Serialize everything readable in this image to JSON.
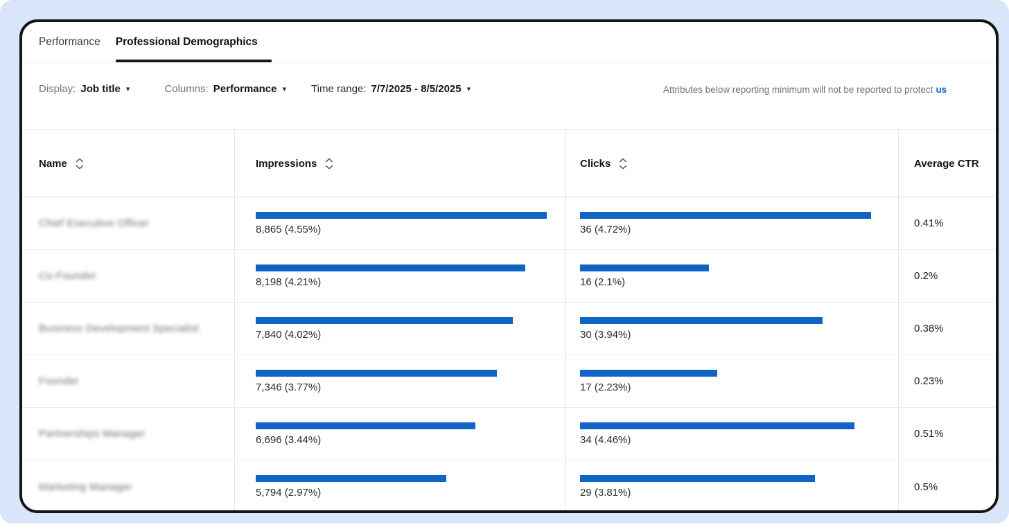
{
  "tabs": [
    {
      "label": "Performance",
      "active": false
    },
    {
      "label": "Professional Demographics",
      "active": true
    }
  ],
  "filters": {
    "display_label": "Display:",
    "display_value": "Job title",
    "columns_label": "Columns:",
    "columns_value": "Performance",
    "time_range_label": "Time range:",
    "time_range_value": "7/7/2025 - 8/5/2025",
    "privacy_notice": "Attributes below reporting minimum will not be reported to protect",
    "privacy_link": "us"
  },
  "table": {
    "headers": {
      "name": "Name",
      "impressions": "Impressions",
      "clicks": "Clicks",
      "average_ctr": "Average CTR"
    },
    "max_impressions": 8865,
    "max_clicks": 36,
    "rows": [
      {
        "name": "Chief Executive Officer",
        "impressions": 8865,
        "impressions_label": "8,865 (4.55%)",
        "clicks": 36,
        "clicks_label": "36 (4.72%)",
        "ctr": "0.41%"
      },
      {
        "name": "Co-Founder",
        "impressions": 8198,
        "impressions_label": "8,198 (4.21%)",
        "clicks": 16,
        "clicks_label": "16 (2.1%)",
        "ctr": "0.2%"
      },
      {
        "name": "Business Development Specialist",
        "impressions": 7840,
        "impressions_label": "7,840 (4.02%)",
        "clicks": 30,
        "clicks_label": "30 (3.94%)",
        "ctr": "0.38%"
      },
      {
        "name": "Founder",
        "impressions": 7346,
        "impressions_label": "7,346 (3.77%)",
        "clicks": 17,
        "clicks_label": "17 (2.23%)",
        "ctr": "0.23%"
      },
      {
        "name": "Partnerships Manager",
        "impressions": 6696,
        "impressions_label": "6,696 (3.44%)",
        "clicks": 34,
        "clicks_label": "34 (4.46%)",
        "ctr": "0.51%"
      },
      {
        "name": "Marketing Manager",
        "impressions": 5794,
        "impressions_label": "5,794 (2.97%)",
        "clicks": 29,
        "clicks_label": "29 (3.81%)",
        "ctr": "0.5%"
      }
    ]
  },
  "colors": {
    "bar_blue": "#0f65c5",
    "link_blue": "#0a66c2",
    "accent_black": "#1a1a1a",
    "page_bg": "#d9e5f8"
  }
}
